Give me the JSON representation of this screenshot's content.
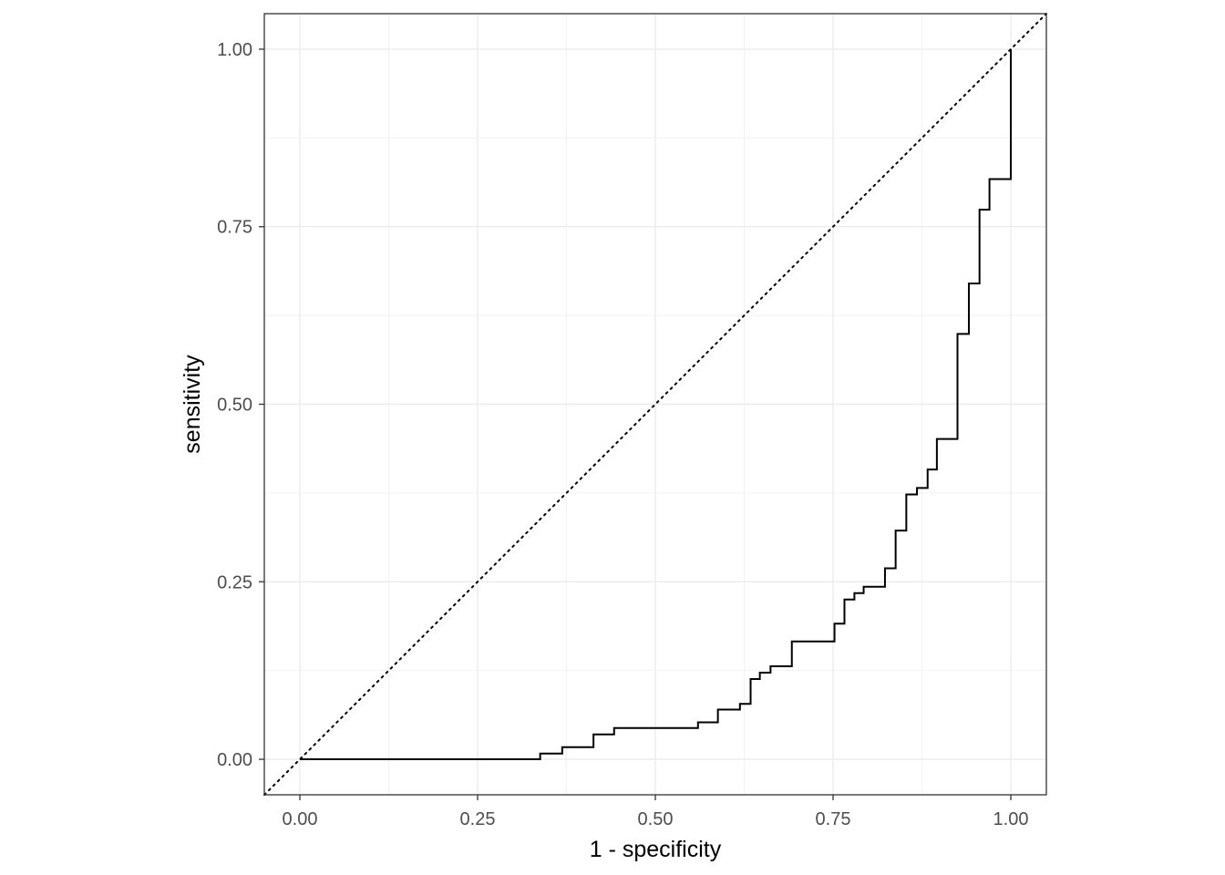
{
  "chart_data": {
    "type": "line",
    "title": "",
    "xlabel": "1 - specificity",
    "ylabel": "sensitivity",
    "xlim": [
      -0.05,
      1.05
    ],
    "ylim": [
      -0.05,
      1.05
    ],
    "x_ticks": [
      0,
      0.25,
      0.5,
      0.75,
      1
    ],
    "x_tick_labels": [
      "0.00",
      "0.25",
      "0.50",
      "0.75",
      "1.00"
    ],
    "y_ticks": [
      0,
      0.25,
      0.5,
      0.75,
      1
    ],
    "y_tick_labels": [
      "0.00",
      "0.25",
      "0.50",
      "0.75",
      "1.00"
    ],
    "grid": true,
    "reference_line": {
      "from": [
        0,
        0
      ],
      "to": [
        1,
        1
      ],
      "style": "dotted"
    },
    "series": [
      {
        "step": "vh",
        "points": [
          [
            0.0,
            0.0
          ],
          [
            0.338,
            0.0
          ],
          [
            0.338,
            0.008
          ],
          [
            0.369,
            0.008
          ],
          [
            0.369,
            0.017
          ],
          [
            0.413,
            0.017
          ],
          [
            0.413,
            0.035
          ],
          [
            0.442,
            0.035
          ],
          [
            0.442,
            0.044
          ],
          [
            0.56,
            0.044
          ],
          [
            0.56,
            0.052
          ],
          [
            0.588,
            0.052
          ],
          [
            0.588,
            0.07
          ],
          [
            0.619,
            0.07
          ],
          [
            0.619,
            0.078
          ],
          [
            0.634,
            0.078
          ],
          [
            0.634,
            0.113
          ],
          [
            0.647,
            0.113
          ],
          [
            0.647,
            0.122
          ],
          [
            0.662,
            0.122
          ],
          [
            0.662,
            0.131
          ],
          [
            0.692,
            0.131
          ],
          [
            0.692,
            0.166
          ],
          [
            0.752,
            0.166
          ],
          [
            0.752,
            0.191
          ],
          [
            0.766,
            0.191
          ],
          [
            0.766,
            0.225
          ],
          [
            0.78,
            0.225
          ],
          [
            0.78,
            0.234
          ],
          [
            0.793,
            0.234
          ],
          [
            0.793,
            0.243
          ],
          [
            0.823,
            0.243
          ],
          [
            0.823,
            0.269
          ],
          [
            0.838,
            0.269
          ],
          [
            0.838,
            0.322
          ],
          [
            0.853,
            0.322
          ],
          [
            0.853,
            0.373
          ],
          [
            0.868,
            0.373
          ],
          [
            0.868,
            0.382
          ],
          [
            0.883,
            0.382
          ],
          [
            0.883,
            0.408
          ],
          [
            0.896,
            0.408
          ],
          [
            0.896,
            0.451
          ],
          [
            0.925,
            0.451
          ],
          [
            0.925,
            0.599
          ],
          [
            0.941,
            0.599
          ],
          [
            0.941,
            0.67
          ],
          [
            0.956,
            0.67
          ],
          [
            0.956,
            0.774
          ],
          [
            0.97,
            0.774
          ],
          [
            0.97,
            0.817
          ],
          [
            1.0,
            0.817
          ],
          [
            1.0,
            1.0
          ]
        ]
      }
    ]
  }
}
